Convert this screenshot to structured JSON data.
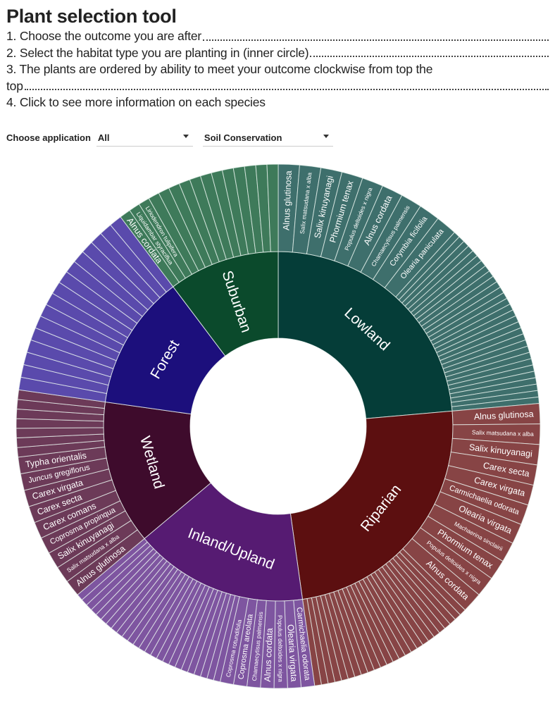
{
  "header": {
    "title": "Plant selection tool",
    "steps": [
      "1. Choose the outcome you are after",
      "2. Select the habitat type you are planting in (inner circle)",
      "3. The plants are ordered by ability to meet your outcome clockwise from top the",
      "top",
      "4. Click to see more information on each species"
    ]
  },
  "controls": {
    "label": "Choose application",
    "application_value": "All",
    "outcome_value": "Soil Conservation"
  },
  "chart_data": {
    "type": "sunburst",
    "title": "",
    "order": "clockwise from top",
    "habitats": [
      {
        "name": "Lowland",
        "value": 85,
        "color": "#053d38",
        "leaf_color": "#3e6f6c",
        "labeled_leaves": [
          "Alnus glutinosa",
          "Salix matsudana x alba",
          "Salix kinuyanagi",
          "Phormium tenax",
          "Populus deltoides x nigra",
          "Alnus cordata",
          "Chamaecytisus palmensis",
          "Corymbia ficifolia",
          "Olearia paniculata"
        ],
        "labeled_weight": 3.3,
        "unlabeled_count": 30,
        "unlabeled_weight": 1
      },
      {
        "name": "Riparian",
        "value": 87,
        "color": "#5c0f10",
        "leaf_color": "#874445",
        "labeled_leaves": [
          "Alnus glutinosa",
          "Salix matsudana x alba",
          "Salix kinuyanagi",
          "Carex secta",
          "Carex virgata",
          "Carmichaelia odorata",
          "Olearia virgata",
          "Machaerina sinclairii",
          "Phormium tenax",
          "Populus deltoides x nigra",
          "Alnus cordata"
        ],
        "labeled_weight": 3,
        "unlabeled_count": 25,
        "unlabeled_weight": 1
      },
      {
        "name": "Inland/Upland",
        "value": 58,
        "color": "#561b72",
        "leaf_color": "#7e55a0",
        "labeled_leaves": [
          "Carmichaelia odorata",
          "Olearia virgata",
          "Populus deltoides x nigra",
          "Alnus cordata",
          "Chamaecytisus palmensis",
          "Coprosma areolata",
          "Coprosma rotundifolia"
        ],
        "labeled_weight": 2,
        "unlabeled_count": 25,
        "unlabeled_weight": 1
      },
      {
        "name": "Wetland",
        "value": 48,
        "color": "#3e0b2c",
        "leaf_color": "#6c3a58",
        "labeled_leaves": [
          "Alnus glutinosa",
          "Salix matsudana x alba",
          "Salix kinuyanagi",
          "Coprosma propinqua",
          "Carex comans",
          "Carex secta",
          "Carex virgata",
          "Juncus gregiflorus",
          "Typha orientalis"
        ],
        "labeled_weight": 1.75,
        "unlabeled_count": 7,
        "unlabeled_weight": 1
      },
      {
        "name": "Forest",
        "value": 45,
        "color": "#1c0f7c",
        "leaf_color": "#5a4aac",
        "labeled_leaves": [],
        "labeled_weight": 1,
        "unlabeled_count": 16,
        "unlabeled_weight": 1
      },
      {
        "name": "Suburban",
        "value": 37,
        "color": "#0b4a2c",
        "leaf_color": "#3e7a5a",
        "labeled_leaves": [
          "Alnus cordata",
          "Liquidambar styraciflua",
          "Liriodendron tulipifera"
        ],
        "labeled_weight": 1,
        "unlabeled_count": 12,
        "unlabeled_weight": 1
      }
    ]
  }
}
